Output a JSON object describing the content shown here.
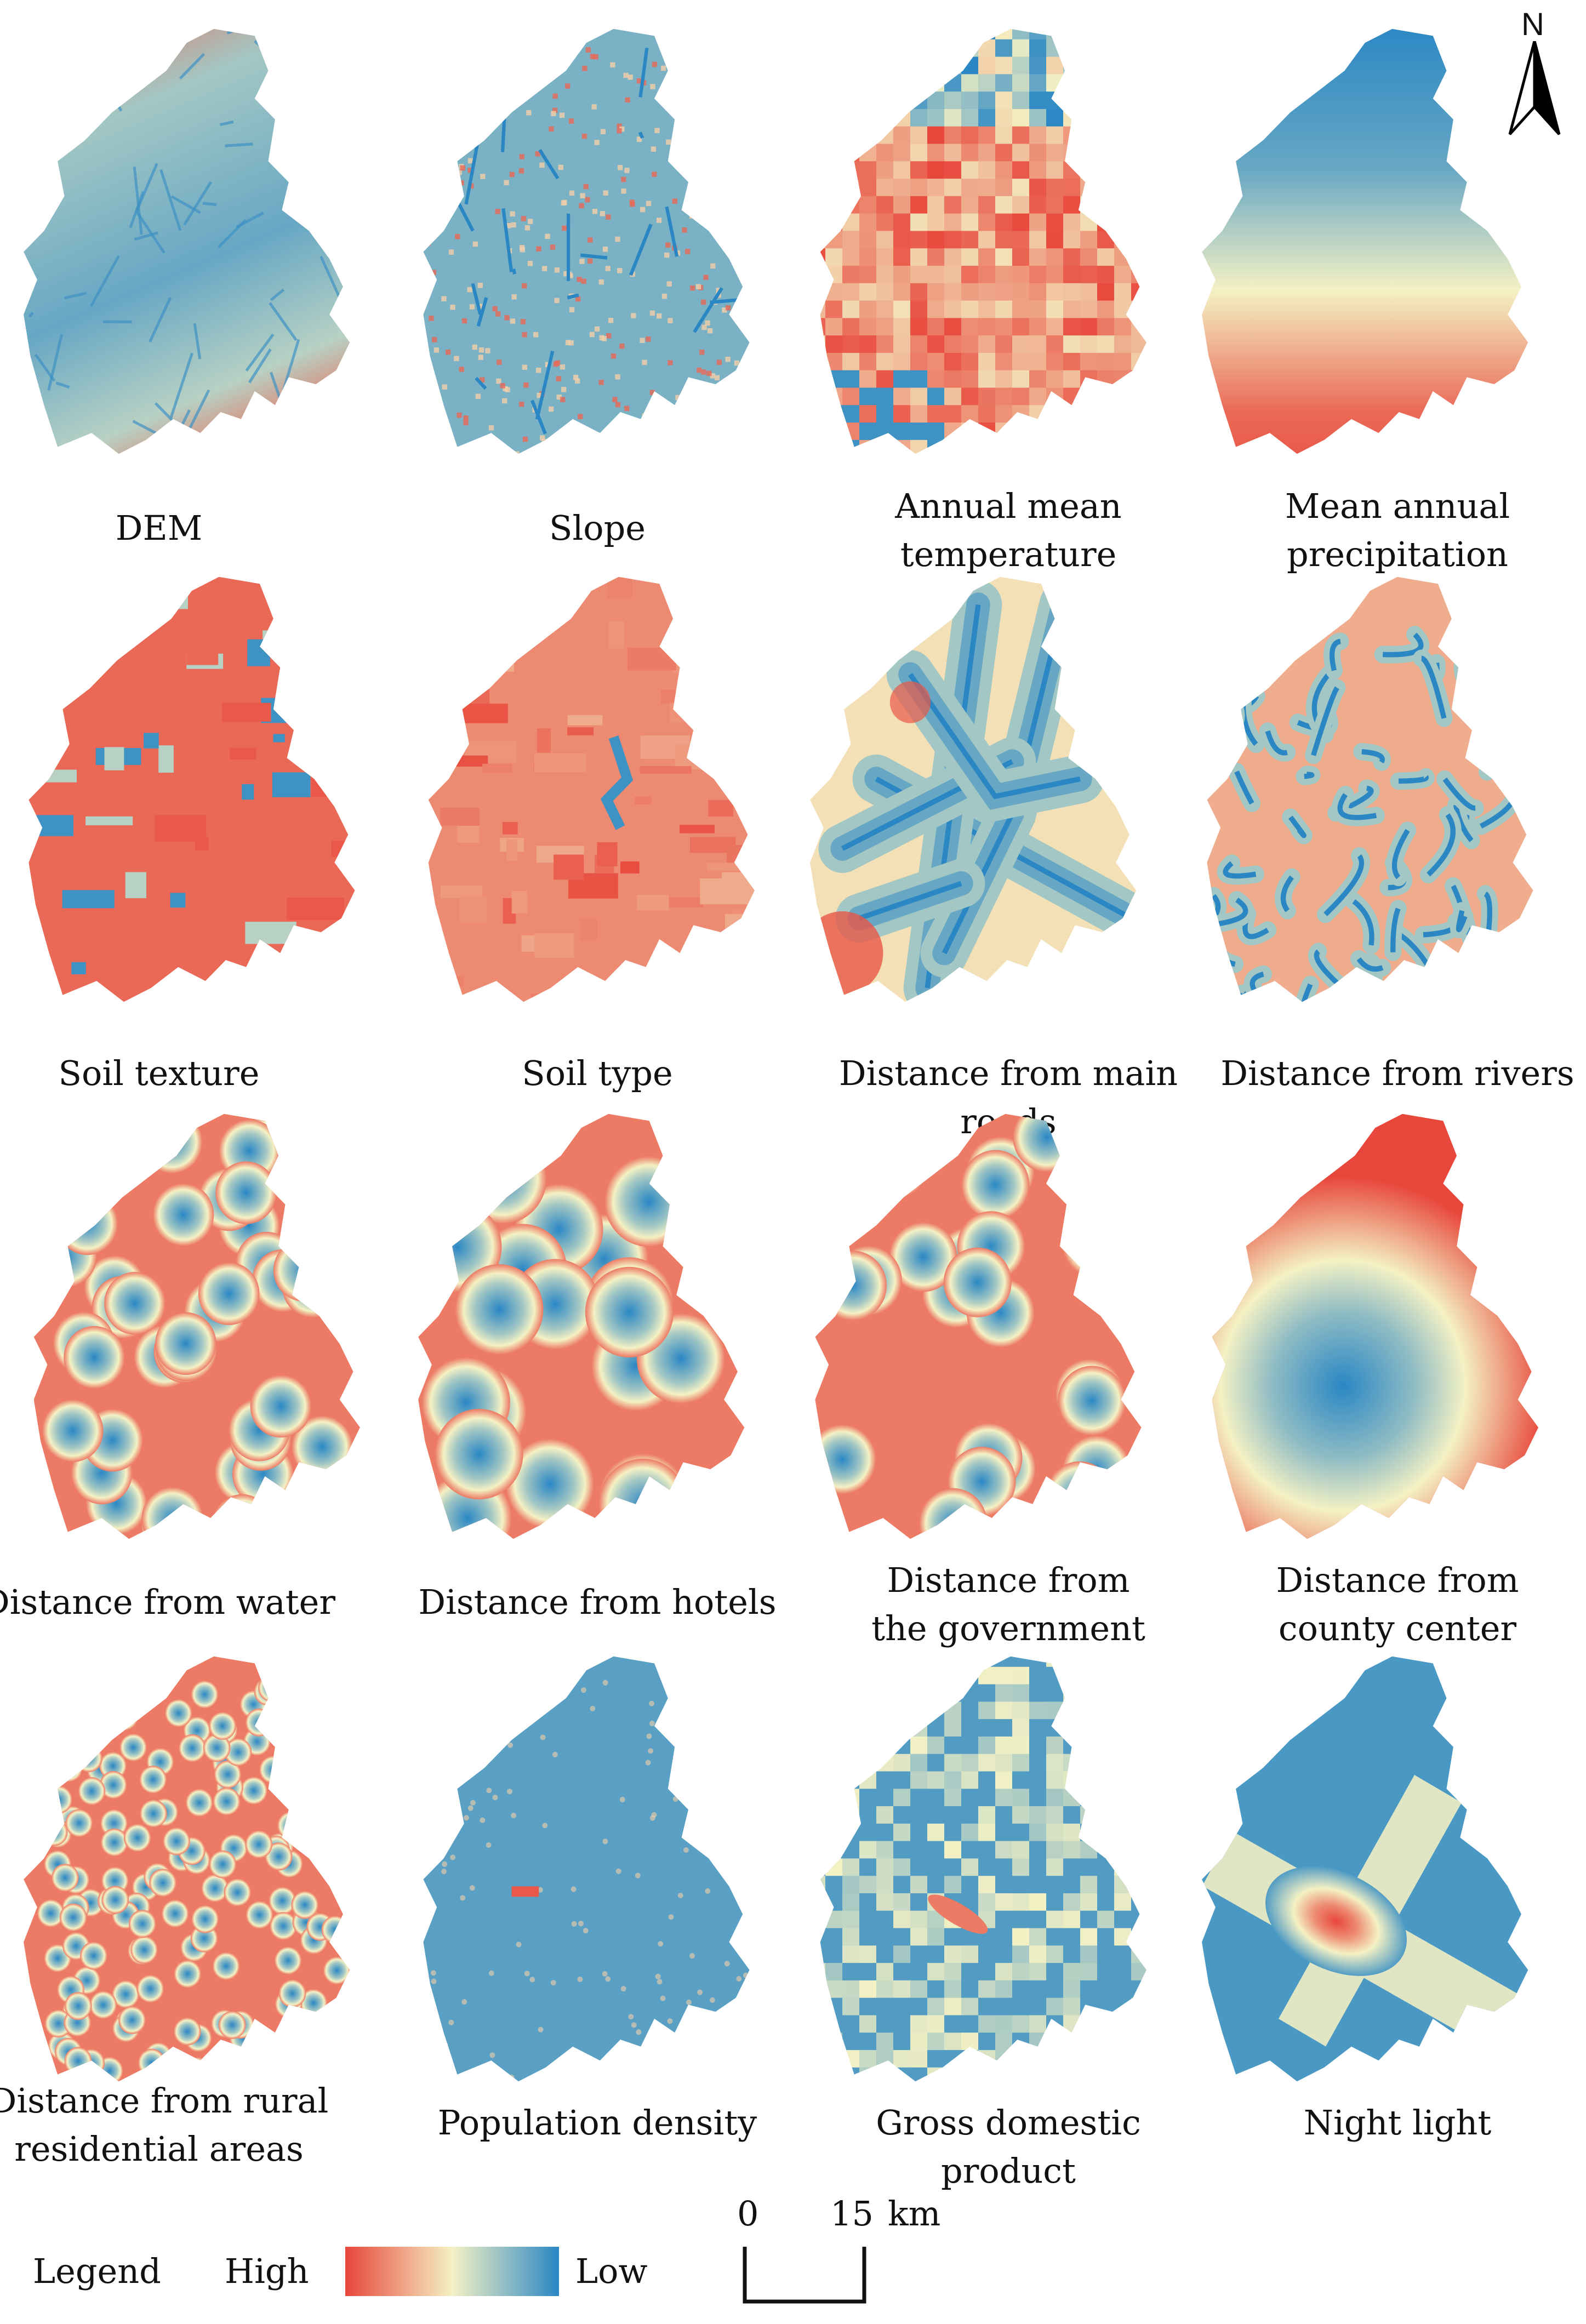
{
  "north_arrow": {
    "label": "N",
    "icon": "north-arrow-icon"
  },
  "colors": {
    "high": "#e8473b",
    "mid": "#f4f1c4",
    "low": "#2a87c4"
  },
  "panels": [
    {
      "id": "dem",
      "caption": "DEM",
      "pattern": "elevation"
    },
    {
      "id": "slope",
      "caption": "Slope",
      "pattern": "texture"
    },
    {
      "id": "temp",
      "caption": "Annual mean\ntemperature",
      "pattern": "mosaic-warm"
    },
    {
      "id": "precip",
      "caption": "Mean annual\nprecipitation",
      "pattern": "gradient-ns"
    },
    {
      "id": "soiltex",
      "caption": "Soil texture",
      "pattern": "patches"
    },
    {
      "id": "soiltype",
      "caption": "Soil type",
      "pattern": "patches-warm"
    },
    {
      "id": "roads",
      "caption": "Distance from main roads",
      "pattern": "lines"
    },
    {
      "id": "rivers",
      "caption": "Distance from rivers",
      "pattern": "rivers"
    },
    {
      "id": "water",
      "caption": "Distance from water",
      "pattern": "points-many"
    },
    {
      "id": "hotels",
      "caption": "Distance from hotels",
      "pattern": "points-few"
    },
    {
      "id": "gov",
      "caption": "Distance from\nthe government",
      "pattern": "points-mid"
    },
    {
      "id": "county",
      "caption": "Distance from\ncounty center",
      "pattern": "radial"
    },
    {
      "id": "rural",
      "caption": "Distance from rural\nresidential areas",
      "pattern": "points-dense"
    },
    {
      "id": "pop",
      "caption": "Population density",
      "pattern": "flat-low"
    },
    {
      "id": "gdp",
      "caption": "Gross domestic product",
      "pattern": "mosaic-cool"
    },
    {
      "id": "night",
      "caption": "Night light",
      "pattern": "hotspot"
    }
  ],
  "legend": {
    "title": "Legend",
    "high_label": "High",
    "low_label": "Low"
  },
  "scale": {
    "zero": "0",
    "value": "15",
    "unit": "km"
  }
}
